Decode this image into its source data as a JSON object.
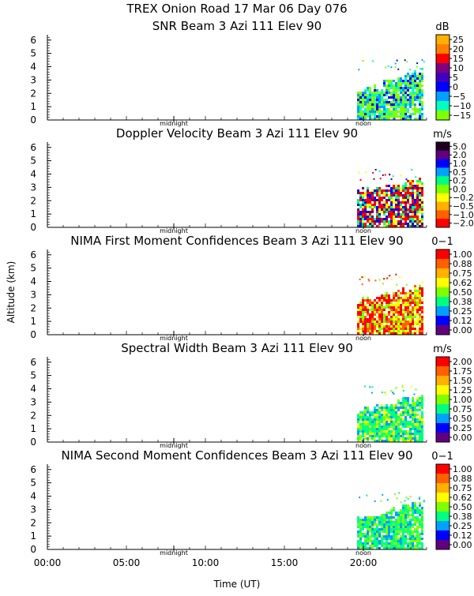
{
  "page_title": "TREX Onion Road  17 Mar 06 Day 076",
  "x_axis": {
    "label": "Time (UT)",
    "ticks": [
      "00:00",
      "05:00",
      "10:00",
      "15:00",
      "20:00"
    ],
    "tick_hours": [
      0,
      5,
      10,
      15,
      20
    ],
    "range_hours": [
      0,
      24
    ]
  },
  "y_axis": {
    "label": "Altitude (km)",
    "ticks": [
      "0",
      "1",
      "2",
      "3",
      "4",
      "5",
      "6"
    ],
    "range_km": [
      0,
      6.4
    ]
  },
  "markers": [
    {
      "label": "midnight",
      "hour": 8
    },
    {
      "label": "noon",
      "hour": 20
    }
  ],
  "chart_data": [
    {
      "type": "heatmap",
      "title": "SNR Beam 3 Azi 111 Elev 90",
      "unit": "dB",
      "colorbar_labels": [
        "25",
        "20",
        "15",
        "10",
        "5",
        "0",
        "−5",
        "−10",
        "−15"
      ],
      "colorbar_colors": [
        "#ffb000",
        "#ff8000",
        "#ff0000",
        "#800080",
        "#4000c0",
        "#0000ff",
        "#00a0ff",
        "#00ffc0",
        "#80ff00"
      ],
      "data_start_hour": 19.6,
      "data_end_hour": 23.8,
      "top_km_start": 2.2,
      "top_km_end": 3.8,
      "dominant_colors": [
        "#80ff00",
        "#00ffc0",
        "#00a0ff",
        "#0000ff"
      ]
    },
    {
      "type": "heatmap",
      "title": "Doppler Velocity Beam 3 Azi 111 Elev 90",
      "unit": "m/s",
      "colorbar_labels": [
        "5.0",
        "2.0",
        "1.0",
        "0.5",
        "0.2",
        "0.0",
        "−0.2",
        "−0.5",
        "−1.0",
        "−2.0"
      ],
      "colorbar_colors": [
        "#200020",
        "#600080",
        "#0000ff",
        "#00a0ff",
        "#00ff80",
        "#80ff00",
        "#ffff00",
        "#ffb000",
        "#ff6000",
        "#ff0000"
      ],
      "data_start_hour": 19.6,
      "data_end_hour": 23.8,
      "top_km_start": 2.8,
      "top_km_end": 3.6,
      "dominant_colors": [
        "#ff0000",
        "#00ff80",
        "#0000ff",
        "#ffff00",
        "#600080"
      ]
    },
    {
      "type": "heatmap",
      "title": "NIMA First Moment Confidences Beam 3 Azi 111 Elev 90",
      "unit": "0−1",
      "colorbar_labels": [
        "1.00",
        "0.88",
        "0.75",
        "0.62",
        "0.50",
        "0.38",
        "0.25",
        "0.12",
        "0.00"
      ],
      "colorbar_colors": [
        "#ff0000",
        "#ff6000",
        "#ffb000",
        "#ffff00",
        "#80ff00",
        "#00ff80",
        "#00a0ff",
        "#0000ff",
        "#600080"
      ],
      "data_start_hour": 19.6,
      "data_end_hour": 23.8,
      "top_km_start": 2.6,
      "top_km_end": 3.8,
      "dominant_colors": [
        "#ff0000",
        "#ff6000",
        "#80ff00",
        "#ffff00"
      ]
    },
    {
      "type": "heatmap",
      "title": "Spectral Width Beam 3 Azi 111 Elev 90",
      "unit": "m/s",
      "colorbar_labels": [
        "2.00",
        "1.75",
        "1.50",
        "1.25",
        "1.00",
        "0.75",
        "0.50",
        "0.25",
        "0.00"
      ],
      "colorbar_colors": [
        "#ff0000",
        "#ff6000",
        "#ffb000",
        "#ffff00",
        "#80ff00",
        "#00ff80",
        "#00a0ff",
        "#0000ff",
        "#600080"
      ],
      "data_start_hour": 19.6,
      "data_end_hour": 23.8,
      "top_km_start": 2.4,
      "top_km_end": 3.6,
      "dominant_colors": [
        "#00ff80",
        "#00a0ff",
        "#80ff00",
        "#ffff00"
      ]
    },
    {
      "type": "heatmap",
      "title": "NIMA Second Moment Confidences Beam 3 Azi 111 Elev 90",
      "unit": "0−1",
      "colorbar_labels": [
        "1.00",
        "0.88",
        "0.75",
        "0.62",
        "0.50",
        "0.38",
        "0.25",
        "0.12",
        "0.00"
      ],
      "colorbar_colors": [
        "#ff0000",
        "#ff6000",
        "#ffb000",
        "#ffff00",
        "#80ff00",
        "#00ff80",
        "#00a0ff",
        "#0000ff",
        "#600080"
      ],
      "data_start_hour": 19.6,
      "data_end_hour": 23.8,
      "top_km_start": 2.4,
      "top_km_end": 3.6,
      "dominant_colors": [
        "#00ff80",
        "#80ff00",
        "#00a0ff"
      ]
    }
  ]
}
